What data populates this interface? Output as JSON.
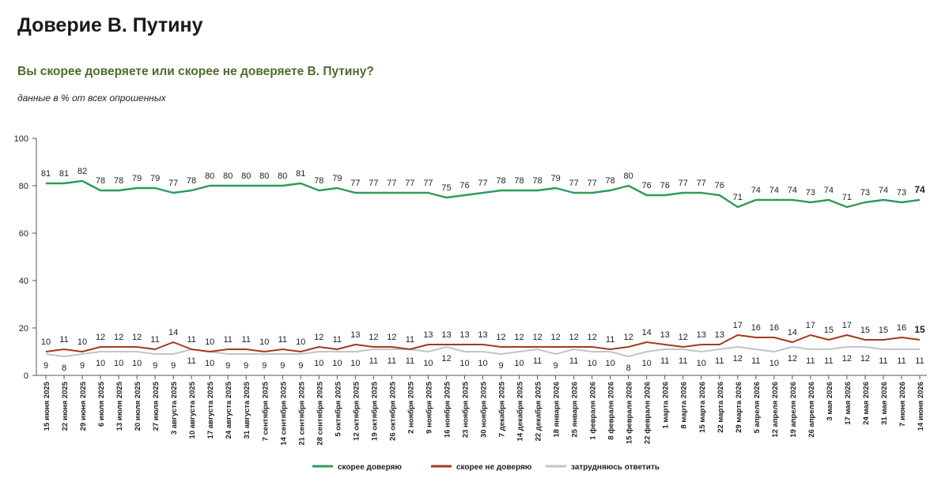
{
  "header": {
    "title": "Доверие В. Путину",
    "subtitle": "Вы скорее доверяете или скорее не доверяете В. Путину?",
    "note": "данные в % от всех опрошенных"
  },
  "chart_data": {
    "type": "line",
    "ylim": [
      0,
      100
    ],
    "yticks": [
      0,
      20,
      40,
      60,
      80,
      100
    ],
    "grid": false,
    "legend_position": "bottom",
    "categories": [
      "15 июня 2025",
      "22 июня 2025",
      "29 июня 2025",
      "6 июля 2025",
      "13 июля 2025",
      "20 июля 2025",
      "27 июля 2025",
      "3 августа 2025",
      "10 августа 2025",
      "17 августа 2025",
      "24 августа 2025",
      "31 августа 2025",
      "7 сентября 2025",
      "14 сентября 2025",
      "21 сентября 2025",
      "28 сентября 2025",
      "5 октября 2025",
      "12 октября 2025",
      "19 октября 2025",
      "26 октября 2025",
      "2 ноября 2025",
      "9 ноября 2025",
      "16 ноября 2025",
      "23 ноября 2025",
      "30 ноября 2025",
      "7 декабря 2025",
      "14 декабря 2025",
      "22 декабря 2025",
      "18 января 2026",
      "25 января 2026",
      "1 февраля 2026",
      "8 февраля 2026",
      "15 февраля 2026",
      "22 февраля 2026",
      "1 марта 2026",
      "8 марта 2026",
      "15 марта 2026",
      "22 марта 2026",
      "29 марта 2026",
      "5 апреля 2026",
      "12 апреля 2026",
      "19 апреля 2026",
      "26 апреля 2026",
      "3 мая 2026",
      "17 мая 2026",
      "24 мая 2026",
      "31 мая 2026",
      "7 июня 2026",
      "14 июня 2026"
    ],
    "series": [
      {
        "name": "скорее доверяю",
        "color": "#2e9b5e",
        "values": [
          81,
          81,
          82,
          78,
          78,
          79,
          79,
          77,
          78,
          80,
          80,
          80,
          80,
          80,
          81,
          78,
          79,
          77,
          77,
          77,
          77,
          77,
          75,
          76,
          77,
          78,
          78,
          78,
          79,
          77,
          77,
          78,
          80,
          76,
          76,
          77,
          77,
          76,
          71,
          74,
          74,
          74,
          73,
          74,
          71,
          73,
          74,
          73,
          74
        ]
      },
      {
        "name": "скорее не доверяю",
        "color": "#a33a1c",
        "values": [
          10,
          11,
          10,
          12,
          12,
          12,
          11,
          14,
          11,
          10,
          11,
          11,
          10,
          11,
          10,
          12,
          11,
          13,
          12,
          12,
          11,
          13,
          13,
          13,
          13,
          12,
          12,
          12,
          12,
          12,
          12,
          11,
          12,
          14,
          13,
          12,
          13,
          13,
          17,
          16,
          16,
          14,
          17,
          15,
          17,
          15,
          15,
          16,
          15
        ]
      },
      {
        "name": "затрудняюсь ответить",
        "color": "#c4c4c4",
        "values": [
          9,
          8,
          9,
          10,
          10,
          10,
          9,
          9,
          11,
          10,
          9,
          9,
          9,
          9,
          9,
          10,
          10,
          10,
          11,
          11,
          11,
          10,
          12,
          10,
          10,
          9,
          10,
          11,
          9,
          11,
          10,
          10,
          8,
          10,
          11,
          11,
          10,
          11,
          12,
          11,
          10,
          12,
          11,
          11,
          12,
          12,
          11,
          11,
          11
        ]
      }
    ]
  }
}
